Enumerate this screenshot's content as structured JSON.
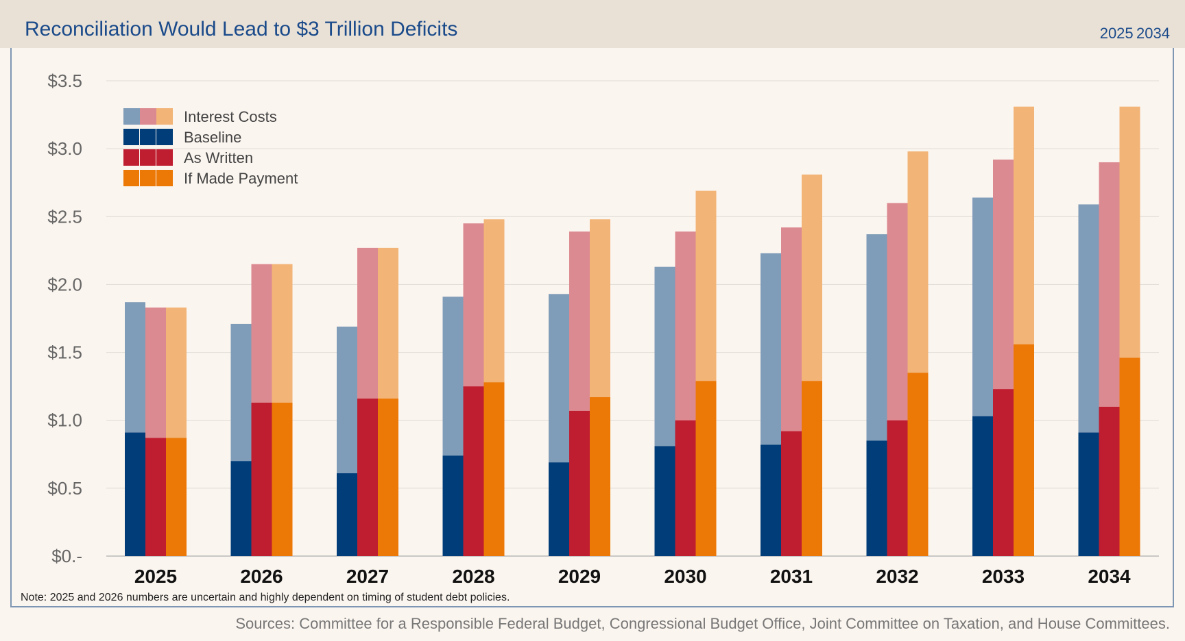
{
  "header": {
    "title": "Reconciliation Would Lead to $3 Trillion Deficits",
    "period": "2025 2034"
  },
  "note": "Note: 2025 and 2026 numbers are uncertain and highly dependent on timing of student debt policies.",
  "sources": "Sources: Committee for a Responsible Federal Budget, Congressional Budget Office, Joint Committee on Taxation, and House Committees.",
  "chart_data": {
    "type": "bar",
    "stacked": true,
    "grouped": true,
    "title": "Reconciliation Would Lead to $3 Trillion Deficits",
    "xlabel": "",
    "ylabel": "",
    "ylim": [
      0,
      3.5
    ],
    "yticks": [
      "$0.-",
      "$0.5",
      "$1.0",
      "$1.5",
      "$2.0",
      "$2.5",
      "$3.0",
      "$3.5"
    ],
    "grid": true,
    "legend_position": "top-left",
    "categories": [
      "2025",
      "2026",
      "2027",
      "2028",
      "2029",
      "2030",
      "2031",
      "2032",
      "2033",
      "2034"
    ],
    "legend": [
      "Interest Costs",
      "Baseline",
      "As Written",
      "If Made Payment"
    ],
    "series": [
      {
        "name": "Baseline",
        "color": "#003d79",
        "interest_color": "#7f9cb8",
        "primary": [
          0.91,
          0.7,
          0.61,
          0.74,
          0.69,
          0.81,
          0.82,
          0.85,
          1.03,
          0.91
        ],
        "total": [
          1.87,
          1.71,
          1.69,
          1.91,
          1.93,
          2.13,
          2.23,
          2.37,
          2.64,
          2.59
        ]
      },
      {
        "name": "As Written",
        "color": "#bf1e31",
        "interest_color": "#dc8a91",
        "primary": [
          0.87,
          1.13,
          1.16,
          1.25,
          1.07,
          1.0,
          0.92,
          1.0,
          1.23,
          1.1
        ],
        "total": [
          1.83,
          2.15,
          2.27,
          2.45,
          2.39,
          2.39,
          2.42,
          2.6,
          2.92,
          2.9
        ]
      },
      {
        "name": "If Made Payment",
        "color": "#ec7806",
        "interest_color": "#f2b477",
        "primary": [
          0.87,
          1.13,
          1.16,
          1.28,
          1.17,
          1.29,
          1.29,
          1.35,
          1.56,
          1.46
        ],
        "total": [
          1.83,
          2.15,
          2.27,
          2.48,
          2.48,
          2.69,
          2.81,
          2.98,
          3.31,
          3.31
        ]
      }
    ]
  }
}
